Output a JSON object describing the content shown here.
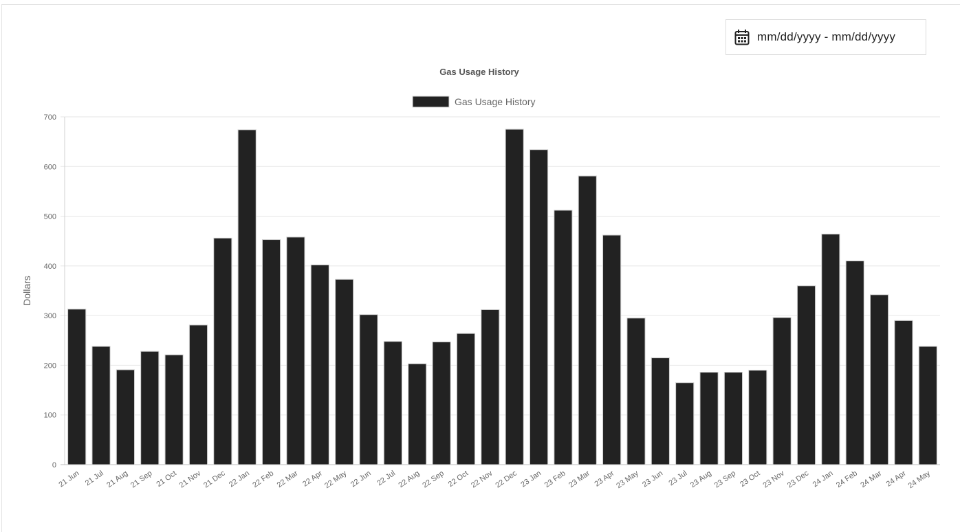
{
  "date_range": {
    "placeholder": "mm/dd/yyyy - mm/dd/yyyy",
    "icon": "calendar-icon"
  },
  "chart_data": {
    "type": "bar",
    "title": "Gas Usage History",
    "legend": [
      "Gas Usage History"
    ],
    "legend_position": "top",
    "ylabel": "Dollars",
    "xlabel": "",
    "ylim": [
      0,
      700
    ],
    "yticks": [
      0,
      100,
      200,
      300,
      400,
      500,
      600,
      700
    ],
    "grid": true,
    "bar_color": "#222222",
    "categories": [
      "21 Jun",
      "21 Jul",
      "21 Aug",
      "21 Sep",
      "21 Oct",
      "21 Nov",
      "21 Dec",
      "22 Jan",
      "22 Feb",
      "22 Mar",
      "22 Apr",
      "22 May",
      "22 Jun",
      "22 Jul",
      "22 Aug",
      "22 Sep",
      "22 Oct",
      "22 Nov",
      "22 Dec",
      "23 Jan",
      "23 Feb",
      "23 Mar",
      "23 Apr",
      "23 May",
      "23 Jun",
      "23 Jul",
      "23 Aug",
      "23 Sep",
      "23 Oct",
      "23 Nov",
      "23 Dec",
      "24 Jan",
      "24 Feb",
      "24 Mar",
      "24 Apr",
      "24 May"
    ],
    "series": [
      {
        "name": "Gas Usage History",
        "values": [
          313,
          238,
          191,
          228,
          221,
          281,
          456,
          674,
          453,
          458,
          402,
          373,
          302,
          248,
          203,
          247,
          264,
          312,
          675,
          634,
          512,
          581,
          462,
          295,
          215,
          165,
          186,
          186,
          190,
          296,
          360,
          464,
          410,
          342,
          290,
          238
        ]
      }
    ]
  }
}
